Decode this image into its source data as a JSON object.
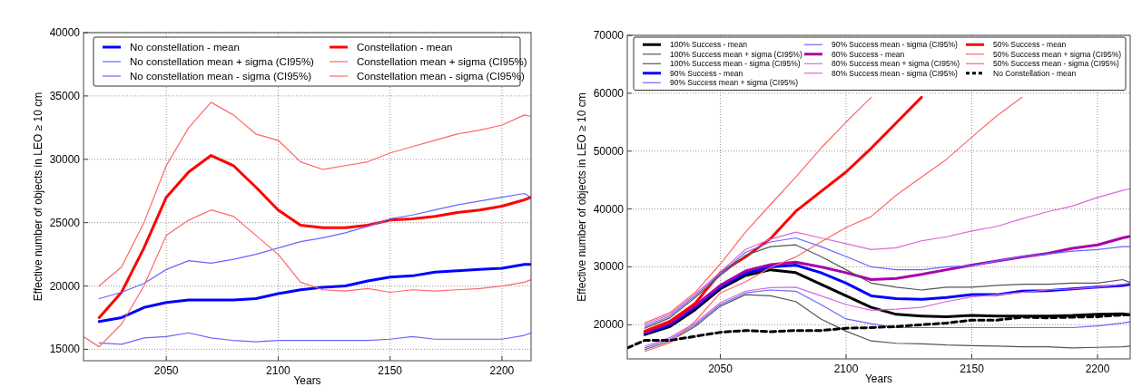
{
  "chart_data": [
    {
      "type": "line",
      "xlabel": "Years",
      "ylabel": "Effective number of objects in LEO ≥ 10 cm",
      "x": [
        2013,
        2020,
        2030,
        2040,
        2050,
        2060,
        2070,
        2080,
        2090,
        2100,
        2110,
        2120,
        2130,
        2140,
        2150,
        2160,
        2170,
        2180,
        2190,
        2200,
        2210,
        2213
      ],
      "xlim": [
        2013,
        2213
      ],
      "xticks": [
        2050,
        2100,
        2150,
        2200
      ],
      "ylim": [
        14100,
        40000
      ],
      "yticks": [
        15000,
        20000,
        25000,
        30000,
        35000,
        40000
      ],
      "grid": true,
      "legend": "top",
      "series": [
        {
          "name": "No constellation - mean",
          "color": "#0000ff",
          "values": [
            null,
            17200,
            17500,
            18300,
            18700,
            18900,
            18900,
            18900,
            19000,
            19400,
            19700,
            19900,
            20000,
            20400,
            20700,
            20800,
            21100,
            21200,
            21300,
            21400,
            21700,
            21700
          ]
        },
        {
          "name": "No constellation mean + sigma (CI95%)",
          "color": "#6666ff",
          "values": [
            null,
            19000,
            19500,
            20200,
            21300,
            22000,
            21800,
            22100,
            22500,
            23000,
            23500,
            23800,
            24200,
            24700,
            25300,
            25600,
            26000,
            26400,
            26700,
            27000,
            27300,
            27000
          ]
        },
        {
          "name": "No constellation mean - sigma (CI95%)",
          "color": "#6666ff",
          "values": [
            null,
            15500,
            15400,
            15900,
            16000,
            16300,
            15900,
            15700,
            15600,
            15700,
            15700,
            15700,
            15700,
            15700,
            15800,
            16000,
            15800,
            15800,
            15800,
            15800,
            16100,
            16300
          ]
        },
        {
          "name": "Constellation - mean",
          "color": "#ff0000",
          "values": [
            null,
            17500,
            19500,
            23000,
            27000,
            29000,
            30300,
            29500,
            27800,
            26000,
            24800,
            24600,
            24600,
            24800,
            25200,
            25300,
            25500,
            25800,
            26000,
            26300,
            26800,
            27000
          ]
        },
        {
          "name": "Constellation mean + sigma (CI95%)",
          "color": "#ff6666",
          "values": [
            null,
            20000,
            21500,
            25000,
            29500,
            32500,
            34500,
            33500,
            32000,
            31500,
            29800,
            29200,
            29500,
            29800,
            30500,
            31000,
            31500,
            32000,
            32300,
            32700,
            33500,
            33400
          ]
        },
        {
          "name": "Constellation mean - sigma (CI95%)",
          "color": "#ff6666",
          "values": [
            16000,
            15200,
            17000,
            20000,
            24000,
            25200,
            26000,
            25500,
            24000,
            22500,
            20300,
            19700,
            19600,
            19800,
            19500,
            19700,
            19600,
            19700,
            19800,
            20000,
            20300,
            20500
          ]
        }
      ]
    },
    {
      "type": "line",
      "xlabel": "Years",
      "ylabel": "Effective number of objects in LEO ≥ 10 cm",
      "x": [
        2013,
        2020,
        2030,
        2040,
        2050,
        2060,
        2070,
        2080,
        2090,
        2100,
        2110,
        2120,
        2130,
        2140,
        2150,
        2160,
        2170,
        2180,
        2190,
        2200,
        2210,
        2213
      ],
      "xlim": [
        2013,
        2213
      ],
      "xticks": [
        2050,
        2100,
        2150,
        2200
      ],
      "ylim": [
        14100,
        70000
      ],
      "yticks": [
        20000,
        30000,
        40000,
        50000,
        60000,
        70000
      ],
      "grid": true,
      "legend": "top",
      "series": [
        {
          "name": "100% Success - mean",
          "color": "#000000",
          "values": [
            null,
            18300,
            19700,
            22600,
            26200,
            28500,
            29500,
            29000,
            27000,
            25000,
            23000,
            21800,
            21500,
            21400,
            21600,
            21500,
            21500,
            21500,
            21600,
            21800,
            21900,
            21700
          ]
        },
        {
          "name": "100% Success mean + sigma (CI95%)",
          "color": "#555555",
          "values": [
            null,
            19400,
            21200,
            24700,
            28500,
            32000,
            33500,
            33800,
            31800,
            29500,
            27200,
            26500,
            26000,
            26500,
            26500,
            26800,
            27000,
            27000,
            27200,
            27200,
            27800,
            27300
          ]
        },
        {
          "name": "100% Success mean - sigma (CI95%)",
          "color": "#555555",
          "values": [
            null,
            15700,
            17200,
            19700,
            23200,
            25200,
            25000,
            24000,
            21000,
            18900,
            17200,
            16800,
            16700,
            16500,
            16400,
            16300,
            16200,
            16200,
            16000,
            16100,
            16200,
            16300
          ]
        },
        {
          "name": "90% Success - mean",
          "color": "#0000ff",
          "values": [
            null,
            18500,
            20000,
            23000,
            26500,
            28900,
            30000,
            30300,
            29000,
            27200,
            25000,
            24500,
            24400,
            24700,
            25200,
            25200,
            25800,
            25900,
            26200,
            26500,
            26800,
            27000
          ]
        },
        {
          "name": "90% Success mean + sigma (CI95%)",
          "color": "#6666ff",
          "values": [
            null,
            19700,
            21500,
            25000,
            28800,
            32500,
            34300,
            35000,
            33500,
            31800,
            30000,
            29500,
            29500,
            30000,
            30200,
            31000,
            31800,
            32200,
            32700,
            33000,
            33500,
            33500
          ]
        },
        {
          "name": "90% Success mean - sigma (CI95%)",
          "color": "#6666ff",
          "values": [
            null,
            16000,
            17500,
            20000,
            23500,
            25500,
            26000,
            25800,
            23500,
            21000,
            20200,
            19500,
            19500,
            19500,
            19500,
            19500,
            19500,
            19500,
            19500,
            19800,
            20300,
            20500
          ]
        },
        {
          "name": "80% Success - mean",
          "color": "#aa00aa",
          "values": [
            null,
            18700,
            20300,
            23300,
            26800,
            29300,
            30400,
            30800,
            30000,
            29000,
            27800,
            28000,
            28700,
            29500,
            30300,
            31000,
            31700,
            32300,
            33200,
            33800,
            35000,
            35300
          ]
        },
        {
          "name": "80% Success mean + sigma (CI95%)",
          "color": "#dd66dd",
          "values": [
            null,
            20000,
            21800,
            25300,
            29100,
            33000,
            34800,
            36000,
            35000,
            34000,
            33000,
            33300,
            34500,
            35200,
            36200,
            37000,
            38300,
            39500,
            40500,
            42000,
            43200,
            43500
          ]
        },
        {
          "name": "80% Success mean - sigma (CI95%)",
          "color": "#dd66dd",
          "values": [
            null,
            16300,
            17800,
            20300,
            23800,
            25800,
            26400,
            26500,
            25000,
            23500,
            22500,
            22700,
            23000,
            24000,
            24800,
            25200,
            25600,
            26000,
            26200,
            26500,
            27000,
            27200
          ]
        },
        {
          "name": "50% Success - mean",
          "color": "#ff0000",
          "x": [
            2020,
            2030,
            2040,
            2050,
            2060,
            2070,
            2080,
            2090,
            2100,
            2110,
            2120,
            2130
          ],
          "values": [
            18900,
            20600,
            23700,
            29000,
            31700,
            34900,
            39600,
            43000,
            46400,
            50500,
            54900,
            59300
          ]
        },
        {
          "name": "50% Success mean + sigma (CI95%)",
          "color": "#ff6666",
          "x": [
            2020,
            2030,
            2040,
            2050,
            2060,
            2070,
            2080,
            2090,
            2100,
            2110
          ],
          "values": [
            20300,
            22100,
            25600,
            30500,
            36000,
            40800,
            45500,
            50500,
            55000,
            59300
          ]
        },
        {
          "name": "50% Success mean - sigma (CI95%)",
          "color": "#ff6666",
          "x": [
            2020,
            2030,
            2040,
            2050,
            2060,
            2070,
            2080,
            2090,
            2100,
            2110,
            2120,
            2130,
            2140,
            2150,
            2160,
            2170
          ],
          "values": [
            15400,
            16900,
            20600,
            25500,
            27400,
            29900,
            31700,
            34300,
            36800,
            38700,
            42400,
            45500,
            48600,
            52400,
            56100,
            59300
          ]
        },
        {
          "name": "No Constellation - mean",
          "color": "#000000",
          "line_style": "dashed",
          "values": [
            16000,
            17300,
            17300,
            18000,
            18700,
            19000,
            18800,
            19000,
            19000,
            19400,
            19500,
            19700,
            20000,
            20300,
            20800,
            20800,
            21300,
            21200,
            21300,
            21400,
            21700,
            21800
          ]
        }
      ]
    }
  ]
}
